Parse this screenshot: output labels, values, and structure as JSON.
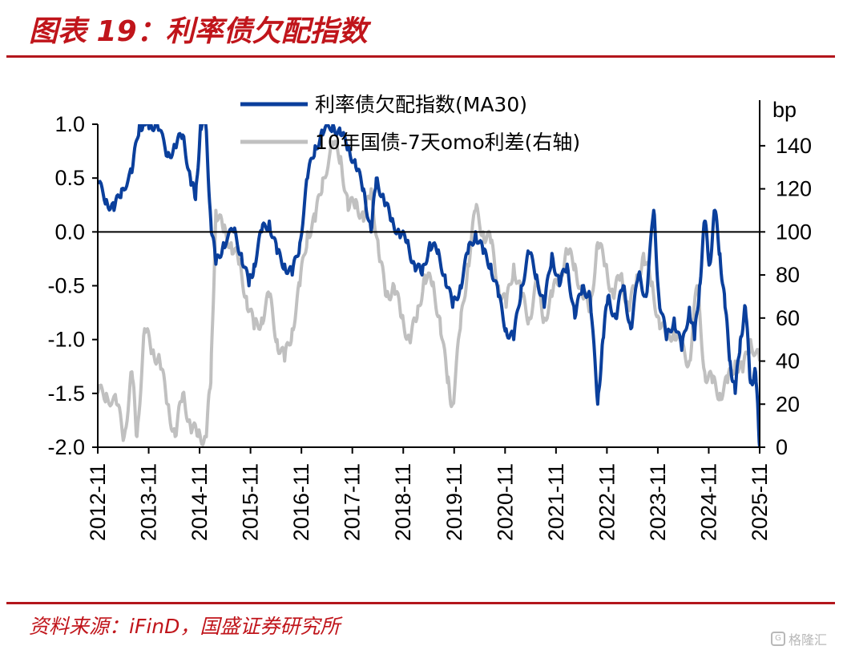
{
  "header": {
    "title": "图表 19：利率债欠配指数"
  },
  "footer": {
    "source": "资料来源：iFinD，国盛证券研究所",
    "watermark": "格隆汇"
  },
  "chart_data": {
    "type": "line",
    "right_unit_label": "bp",
    "x_tick_labels": [
      "2012-11",
      "2013-11",
      "2014-11",
      "2015-11",
      "2016-11",
      "2017-11",
      "2018-11",
      "2019-11",
      "2020-11",
      "2021-11",
      "2022-11",
      "2023-11",
      "2024-11",
      "2025-11"
    ],
    "y_left": {
      "ylim": [
        -2.0,
        1.0
      ],
      "ticks": [
        "1.0",
        "0.5",
        "0.0",
        "-0.5",
        "-1.0",
        "-1.5",
        "-2.0"
      ],
      "tick_values": [
        1.0,
        0.5,
        0.0,
        -0.5,
        -1.0,
        -1.5,
        -2.0
      ]
    },
    "y_right": {
      "ylim": [
        0,
        150
      ],
      "ticks": [
        "140",
        "120",
        "100",
        "80",
        "60",
        "40",
        "20",
        "0"
      ],
      "tick_values": [
        140,
        120,
        100,
        80,
        60,
        40,
        20,
        0
      ]
    },
    "legend_placement": "top-center",
    "colors": {
      "index": "#0a3f9c",
      "spread": "#c0c0c0",
      "axis": "#000000"
    },
    "series": [
      {
        "name": "利率债欠配指数(MA30)",
        "axis": "left",
        "x": [
          2012.83,
          2013.0,
          2013.15,
          2013.3,
          2013.5,
          2013.65,
          2013.75,
          2013.85,
          2014.0,
          2014.2,
          2014.35,
          2014.5,
          2014.65,
          2014.75,
          2014.85,
          2014.95,
          2015.05,
          2015.15,
          2015.3,
          2015.5,
          2015.65,
          2015.8,
          2015.9,
          2016.05,
          2016.2,
          2016.35,
          2016.5,
          2016.65,
          2016.8,
          2016.95,
          2017.1,
          2017.25,
          2017.45,
          2017.6,
          2017.75,
          2017.9,
          2018.05,
          2018.2,
          2018.3,
          2018.45,
          2018.6,
          2018.75,
          2018.9,
          2019.05,
          2019.2,
          2019.35,
          2019.5,
          2019.65,
          2019.8,
          2019.95,
          2020.1,
          2020.25,
          2020.4,
          2020.55,
          2020.7,
          2020.85,
          2021.0,
          2021.15,
          2021.3,
          2021.45,
          2021.6,
          2021.75,
          2021.9,
          2022.05,
          2022.2,
          2022.35,
          2022.5,
          2022.65,
          2022.75,
          2022.85,
          2023.0,
          2023.15,
          2023.3,
          2023.45,
          2023.6,
          2023.75,
          2023.85,
          2024.0,
          2024.15,
          2024.3,
          2024.45,
          2024.55,
          2024.65,
          2024.75,
          2024.85,
          2024.95,
          2025.05,
          2025.15,
          2025.25,
          2025.35,
          2025.45,
          2025.55,
          2025.65,
          2025.75,
          2025.83
        ],
        "values": [
          0.45,
          0.3,
          0.2,
          0.4,
          0.55,
          1.0,
          1.0,
          1.0,
          1.0,
          0.7,
          0.8,
          0.9,
          0.5,
          0.3,
          1.0,
          1.0,
          0.1,
          -0.3,
          -0.1,
          0.0,
          -0.2,
          -0.5,
          -0.3,
          0.0,
          0.1,
          -0.2,
          -0.3,
          -0.4,
          -0.1,
          0.5,
          0.8,
          0.9,
          1.0,
          0.9,
          0.8,
          0.6,
          0.4,
          0.0,
          0.5,
          0.3,
          0.1,
          0.0,
          -0.1,
          -0.3,
          -0.4,
          -0.1,
          -0.2,
          -0.4,
          -0.7,
          -0.5,
          -0.2,
          0.0,
          -0.2,
          -0.3,
          -0.6,
          -0.9,
          -1.0,
          -0.5,
          -0.2,
          -0.4,
          -0.7,
          -0.2,
          -0.5,
          -0.3,
          -0.8,
          -0.5,
          -0.6,
          -1.6,
          -1.0,
          -0.6,
          -0.8,
          -0.5,
          -0.9,
          -0.4,
          -0.6,
          0.2,
          -0.6,
          -1.0,
          -0.8,
          -1.1,
          -0.7,
          -1.0,
          -0.5,
          0.1,
          -0.3,
          0.2,
          -0.2,
          -0.7,
          -1.2,
          -1.5,
          -1.0,
          -0.7,
          -1.4,
          -1.3,
          -2.0
        ]
      },
      {
        "name": "10年国债-7天omo利差(右轴)",
        "axis": "right",
        "x": [
          2012.83,
          2013.0,
          2013.2,
          2013.35,
          2013.5,
          2013.6,
          2013.75,
          2013.9,
          2014.05,
          2014.2,
          2014.35,
          2014.5,
          2014.65,
          2014.8,
          2014.95,
          2015.05,
          2015.15,
          2015.3,
          2015.45,
          2015.6,
          2015.75,
          2015.9,
          2016.05,
          2016.2,
          2016.35,
          2016.5,
          2016.65,
          2016.8,
          2016.95,
          2017.1,
          2017.25,
          2017.45,
          2017.6,
          2017.75,
          2017.9,
          2018.05,
          2018.2,
          2018.35,
          2018.5,
          2018.65,
          2018.8,
          2018.95,
          2019.1,
          2019.25,
          2019.4,
          2019.55,
          2019.7,
          2019.8,
          2019.95,
          2020.1,
          2020.25,
          2020.4,
          2020.55,
          2020.7,
          2020.85,
          2021.0,
          2021.15,
          2021.3,
          2021.45,
          2021.6,
          2021.75,
          2021.9,
          2022.05,
          2022.2,
          2022.35,
          2022.5,
          2022.65,
          2022.8,
          2022.95,
          2023.1,
          2023.25,
          2023.4,
          2023.55,
          2023.7,
          2023.85,
          2024.0,
          2024.15,
          2024.3,
          2024.45,
          2024.6,
          2024.75,
          2024.9,
          2025.05,
          2025.2,
          2025.35,
          2025.5,
          2025.65,
          2025.83
        ],
        "values": [
          25,
          25,
          20,
          5,
          35,
          5,
          55,
          45,
          40,
          20,
          5,
          25,
          10,
          5,
          5,
          30,
          110,
          100,
          95,
          85,
          70,
          55,
          60,
          70,
          50,
          40,
          55,
          75,
          100,
          105,
          125,
          140,
          135,
          110,
          115,
          105,
          120,
          90,
          70,
          75,
          60,
          50,
          60,
          80,
          75,
          60,
          30,
          20,
          55,
          85,
          110,
          100,
          95,
          75,
          65,
          85,
          70,
          60,
          75,
          60,
          70,
          80,
          90,
          85,
          70,
          65,
          95,
          85,
          70,
          80,
          65,
          75,
          90,
          75,
          60,
          50,
          55,
          45,
          40,
          75,
          35,
          30,
          25,
          30,
          40,
          35,
          50,
          40
        ]
      }
    ]
  }
}
